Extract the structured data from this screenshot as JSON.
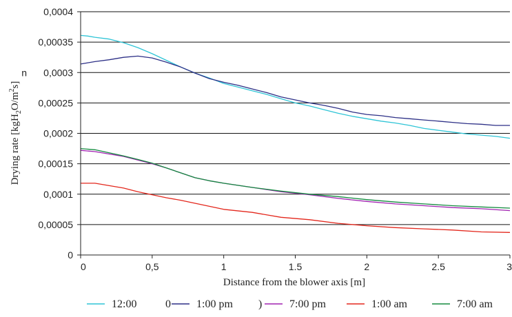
{
  "chart_data": {
    "type": "line",
    "title": "",
    "xlabel": "Distance from the blower axis [m]",
    "ylabel": {
      "parts": [
        "Drying rate [kgH",
        "2",
        "O/m",
        "2",
        "s]"
      ]
    },
    "xlim": [
      0,
      3
    ],
    "ylim": [
      0,
      0.0004
    ],
    "grid": true,
    "legend_position": "bottom",
    "x_ticks": [
      {
        "value": 0,
        "label": "0"
      },
      {
        "value": 0.5,
        "label": "0,5"
      },
      {
        "value": 1,
        "label": "1"
      },
      {
        "value": 1.5,
        "label": "1.5"
      },
      {
        "value": 2,
        "label": "2"
      },
      {
        "value": 2.5,
        "label": "2.5"
      },
      {
        "value": 3,
        "label": "3"
      }
    ],
    "y_ticks": [
      {
        "value": 0,
        "label": "0"
      },
      {
        "value": 5e-05,
        "label": "0,00005"
      },
      {
        "value": 0.0001,
        "label": "0,0001"
      },
      {
        "value": 0.00015,
        "label": "0,00015"
      },
      {
        "value": 0.0002,
        "label": "0,0002"
      },
      {
        "value": 0.00025,
        "label": "0,00025"
      },
      {
        "value": 0.0003,
        "label": "0,0003"
      },
      {
        "value": 0.00035,
        "label": "0,00035"
      },
      {
        "value": 0.0004,
        "label": "0,0004"
      }
    ],
    "y_tick_prefix_0_0003": "n",
    "series": [
      {
        "name": "12:00",
        "color": "#2ec4d6",
        "legend_marker": "",
        "x": [
          0,
          0.05,
          0.1,
          0.2,
          0.3,
          0.4,
          0.5,
          0.6,
          0.7,
          0.8,
          0.9,
          1.0,
          1.1,
          1.2,
          1.3,
          1.4,
          1.5,
          1.6,
          1.7,
          1.8,
          1.9,
          2.0,
          2.1,
          2.2,
          2.3,
          2.4,
          2.5,
          2.6,
          2.7,
          2.8,
          2.9,
          3.0
        ],
        "y": [
          0.000361,
          0.00036,
          0.000358,
          0.000355,
          0.000349,
          0.000341,
          0.000331,
          0.00032,
          0.000309,
          0.000299,
          0.000291,
          0.000282,
          0.000276,
          0.00027,
          0.000264,
          0.000257,
          0.00025,
          0.000245,
          0.000239,
          0.000233,
          0.000228,
          0.000224,
          0.00022,
          0.000217,
          0.000213,
          0.000208,
          0.000205,
          0.000202,
          0.000199,
          0.000197,
          0.000195,
          0.000192
        ]
      },
      {
        "name": "1:00 pm",
        "color": "#2c2f86",
        "legend_marker": "0",
        "x": [
          0,
          0.05,
          0.1,
          0.2,
          0.3,
          0.4,
          0.5,
          0.6,
          0.7,
          0.8,
          0.9,
          1.0,
          1.1,
          1.2,
          1.3,
          1.4,
          1.5,
          1.6,
          1.7,
          1.8,
          1.9,
          2.0,
          2.1,
          2.2,
          2.3,
          2.4,
          2.5,
          2.6,
          2.7,
          2.8,
          2.9,
          3.0
        ],
        "y": [
          0.000314,
          0.000316,
          0.000318,
          0.000321,
          0.000325,
          0.000327,
          0.000324,
          0.000317,
          0.000309,
          0.000299,
          0.00029,
          0.000284,
          0.000279,
          0.000273,
          0.000267,
          0.00026,
          0.000255,
          0.00025,
          0.000246,
          0.000241,
          0.000235,
          0.000231,
          0.000229,
          0.000226,
          0.000224,
          0.000222,
          0.00022,
          0.000218,
          0.000216,
          0.000215,
          0.000213,
          0.000213
        ]
      },
      {
        "name": "7:00 pm",
        "color": "#a020b0",
        "legend_marker": ")",
        "x": [
          0,
          0.1,
          0.2,
          0.3,
          0.4,
          0.5,
          0.6,
          0.7,
          0.8,
          0.9,
          1.0,
          1.2,
          1.4,
          1.6,
          1.8,
          2.0,
          2.2,
          2.4,
          2.6,
          2.8,
          3.0
        ],
        "y": [
          0.000172,
          0.00017,
          0.000166,
          0.000162,
          0.000156,
          0.00015,
          0.000143,
          0.000135,
          0.000127,
          0.000122,
          0.000118,
          0.000111,
          0.000104,
          9.9e-05,
          9.3e-05,
          8.8e-05,
          8.4e-05,
          8.1e-05,
          7.8e-05,
          7.6e-05,
          7.3e-05
        ]
      },
      {
        "name": "1:00 am",
        "color": "#e3261b",
        "legend_marker": "",
        "x": [
          0,
          0.1,
          0.2,
          0.3,
          0.4,
          0.5,
          0.6,
          0.7,
          0.8,
          0.9,
          1.0,
          1.2,
          1.4,
          1.6,
          1.8,
          2.0,
          2.2,
          2.4,
          2.6,
          2.8,
          3.0
        ],
        "y": [
          0.000118,
          0.000118,
          0.000114,
          0.00011,
          0.000104,
          9.9e-05,
          9.4e-05,
          9e-05,
          8.5e-05,
          8e-05,
          7.5e-05,
          7e-05,
          6.2e-05,
          5.8e-05,
          5.2e-05,
          4.8e-05,
          4.5e-05,
          4.3e-05,
          4.1e-05,
          3.8e-05,
          3.7e-05
        ]
      },
      {
        "name": "7:00 am",
        "color": "#138a3f",
        "legend_marker": "",
        "x": [
          0,
          0.1,
          0.2,
          0.3,
          0.4,
          0.5,
          0.6,
          0.7,
          0.8,
          0.9,
          1.0,
          1.2,
          1.4,
          1.6,
          1.8,
          2.0,
          2.2,
          2.4,
          2.6,
          2.8,
          3.0
        ],
        "y": [
          0.000175,
          0.000173,
          0.000168,
          0.000163,
          0.000157,
          0.000151,
          0.000143,
          0.000135,
          0.000127,
          0.000122,
          0.000118,
          0.000111,
          0.000105,
          0.0001,
          9.6e-05,
          9.1e-05,
          8.7e-05,
          8.4e-05,
          8.1e-05,
          7.9e-05,
          7.7e-05
        ]
      }
    ]
  }
}
